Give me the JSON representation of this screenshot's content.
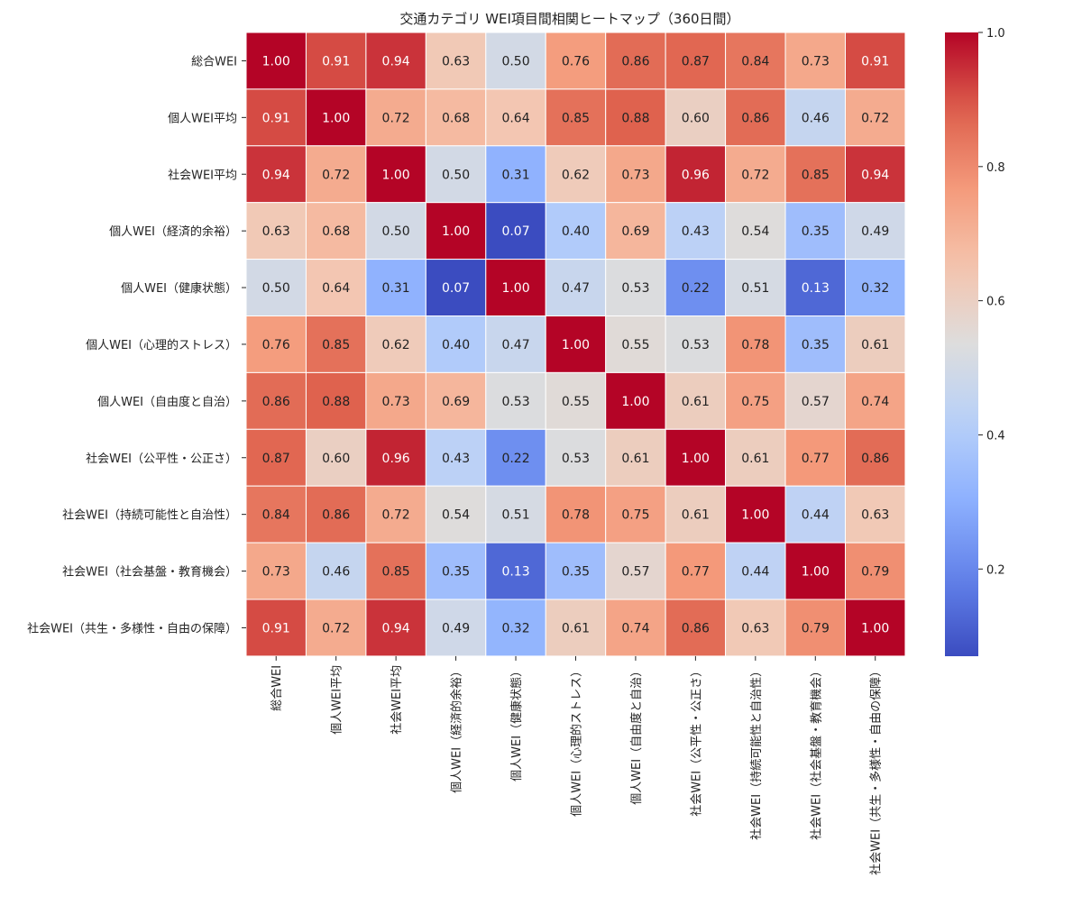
{
  "chart_data": {
    "type": "heatmap",
    "title": "交通カテゴリ WEI項目間相関ヒートマップ（360日間）",
    "row_labels": [
      "総合WEI",
      "個人WEI平均",
      "社会WEI平均",
      "個人WEI（経済的余裕）",
      "個人WEI（健康状態）",
      "個人WEI（心理的ストレス）",
      "個人WEI（自由度と自治）",
      "社会WEI（公平性・公正さ）",
      "社会WEI（持続可能性と自治性）",
      "社会WEI（社会基盤・教育機会）",
      "社会WEI（共生・多様性・自由の保障）"
    ],
    "col_labels": [
      "総合WEI",
      "個人WEI平均",
      "社会WEI平均",
      "個人WEI（経済的余裕）",
      "個人WEI（健康状態）",
      "個人WEI（心理的ストレス）",
      "個人WEI（自由度と自治）",
      "社会WEI（公平性・公正さ）",
      "社会WEI（持続可能性と自治性）",
      "社会WEI（社会基盤・教育機会）",
      "社会WEI（共生・多様性・自由の保障）"
    ],
    "values": [
      [
        1.0,
        0.91,
        0.94,
        0.63,
        0.5,
        0.76,
        0.86,
        0.87,
        0.84,
        0.73,
        0.91
      ],
      [
        0.91,
        1.0,
        0.72,
        0.68,
        0.64,
        0.85,
        0.88,
        0.6,
        0.86,
        0.46,
        0.72
      ],
      [
        0.94,
        0.72,
        1.0,
        0.5,
        0.31,
        0.62,
        0.73,
        0.96,
        0.72,
        0.85,
        0.94
      ],
      [
        0.63,
        0.68,
        0.5,
        1.0,
        0.07,
        0.4,
        0.69,
        0.43,
        0.54,
        0.35,
        0.49
      ],
      [
        0.5,
        0.64,
        0.31,
        0.07,
        1.0,
        0.47,
        0.53,
        0.22,
        0.51,
        0.13,
        0.32
      ],
      [
        0.76,
        0.85,
        0.62,
        0.4,
        0.47,
        1.0,
        0.55,
        0.53,
        0.78,
        0.35,
        0.61
      ],
      [
        0.86,
        0.88,
        0.73,
        0.69,
        0.53,
        0.55,
        1.0,
        0.61,
        0.75,
        0.57,
        0.74
      ],
      [
        0.87,
        0.6,
        0.96,
        0.43,
        0.22,
        0.53,
        0.61,
        1.0,
        0.61,
        0.77,
        0.86
      ],
      [
        0.84,
        0.86,
        0.72,
        0.54,
        0.51,
        0.78,
        0.75,
        0.61,
        1.0,
        0.44,
        0.63
      ],
      [
        0.73,
        0.46,
        0.85,
        0.35,
        0.13,
        0.35,
        0.57,
        0.77,
        0.44,
        1.0,
        0.79
      ],
      [
        0.91,
        0.72,
        0.94,
        0.49,
        0.32,
        0.61,
        0.74,
        0.86,
        0.63,
        0.79,
        1.0
      ]
    ],
    "colorbar": {
      "min": 0.07,
      "max": 1.0,
      "ticks": [
        0.2,
        0.4,
        0.6,
        0.8,
        1.0
      ],
      "tick_labels": [
        "0.2",
        "0.4",
        "0.6",
        "0.8",
        "1.0"
      ]
    },
    "colormap": "coolwarm",
    "colors": {
      "low": "#3b4cc0",
      "mid": "#dddddd",
      "high": "#b40426"
    }
  }
}
